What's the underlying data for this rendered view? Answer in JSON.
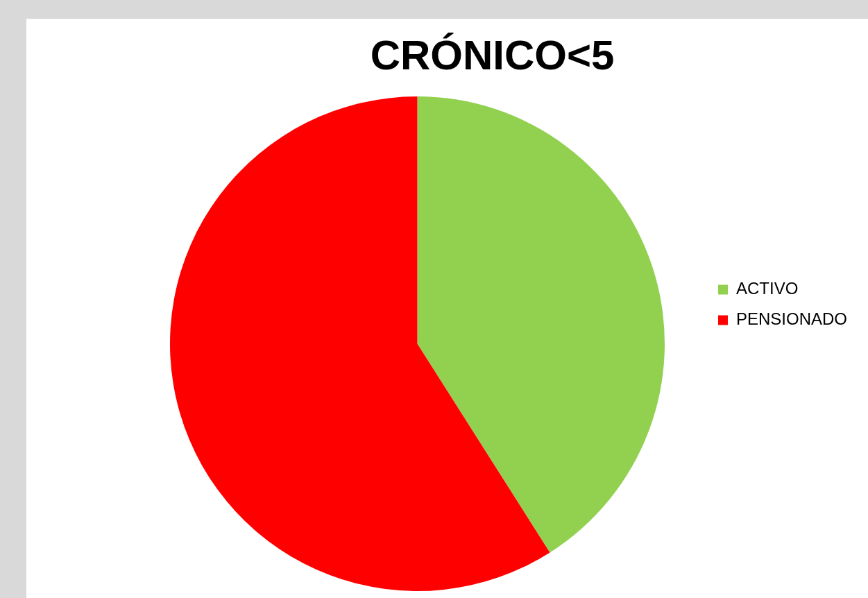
{
  "chart_data": {
    "type": "pie",
    "title": "CRÓNICO<5",
    "categories": [
      "ACTIVO",
      "PENSIONADO"
    ],
    "values": [
      41,
      59
    ],
    "colors": [
      "#92d050",
      "#ff0000"
    ],
    "legend": "right"
  }
}
